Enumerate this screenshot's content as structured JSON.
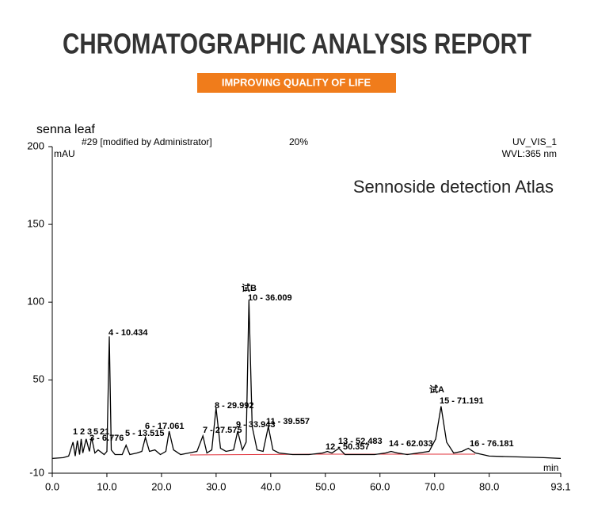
{
  "header": {
    "title": "CHROMATOGRAPHIC ANALYSIS REPORT",
    "tagline": "IMPROVING QUALITY OF LIFE"
  },
  "chart_data": {
    "type": "line",
    "title": "senna leaf",
    "run_label": "#29 [modified by Administrator]",
    "percent_label": "20%",
    "channel": "UV_VIS_1",
    "ylabel": "mAU",
    "wavelength": "WVL:365 nm",
    "annotation": "Sennoside detection Atlas",
    "xlabel": "min",
    "color": "#000000",
    "xlim": [
      0,
      93.1
    ],
    "ylim": [
      -10,
      200
    ],
    "xticks": [
      {
        "value": 0,
        "label": "0.0"
      },
      {
        "value": 10,
        "label": "10.0"
      },
      {
        "value": 20,
        "label": "20.0"
      },
      {
        "value": 30,
        "label": "30.0"
      },
      {
        "value": 40,
        "label": "40.0"
      },
      {
        "value": 50,
        "label": "50.0"
      },
      {
        "value": 60,
        "label": "60.0"
      },
      {
        "value": 70,
        "label": "70.0"
      },
      {
        "value": 80,
        "label": "80.0"
      },
      93.1
    ],
    "yticks": [
      -10,
      50,
      100,
      150,
      200
    ],
    "peak_labels": [
      "1",
      "2",
      "3",
      "5",
      "21",
      "3 - 6.776",
      "4 - 10.434",
      "5 - 13.515",
      "6 - 17.061",
      "7 - 27.575",
      "8 - 29.992",
      "9 - 33.943",
      "10 - 36.009",
      "11 - 39.557",
      "12 - 50.357",
      "13 - 52.483",
      "14 - 62.033",
      "15 - 71.191",
      "16 - 76.181",
      "试B",
      "试A"
    ],
    "x": [
      0,
      2,
      3,
      3.8,
      4.2,
      4.6,
      5.0,
      5.3,
      5.6,
      6.2,
      6.8,
      7.2,
      7.8,
      8.4,
      9.5,
      10.0,
      10.434,
      10.8,
      11.5,
      12.8,
      13.515,
      14.2,
      15.5,
      16.4,
      17.061,
      17.8,
      18.8,
      19.8,
      20.8,
      21.4,
      22.2,
      23.5,
      25,
      26.5,
      27.575,
      28.3,
      29.2,
      29.992,
      30.8,
      31.8,
      33.2,
      33.943,
      34.8,
      35.5,
      36.009,
      36.6,
      37.5,
      38.6,
      39.557,
      40.4,
      41.5,
      44,
      47,
      49.5,
      50.357,
      51.2,
      52.483,
      53.6,
      56,
      59,
      61,
      62.033,
      63.2,
      65,
      67,
      69,
      70.2,
      71.191,
      72.2,
      73.5,
      75,
      76.181,
      77.5,
      80,
      85,
      90,
      93.1
    ],
    "values": [
      -0.5,
      0,
      1,
      10,
      1,
      11,
      2,
      12,
      3,
      12,
      4,
      13,
      3,
      5,
      2,
      4,
      78,
      5,
      2,
      2,
      8,
      2,
      3,
      4,
      13,
      4,
      5,
      2,
      4,
      17,
      5,
      2,
      3,
      4,
      14,
      3,
      5,
      32,
      6,
      4,
      5,
      17,
      5,
      10,
      101,
      20,
      5,
      4,
      20,
      5,
      3,
      2,
      2,
      3,
      4,
      3,
      6,
      2,
      2,
      2,
      3,
      4,
      3,
      2,
      3,
      4,
      12,
      33,
      10,
      3,
      4,
      6,
      3,
      1,
      0.5,
      0,
      -0.5
    ]
  }
}
